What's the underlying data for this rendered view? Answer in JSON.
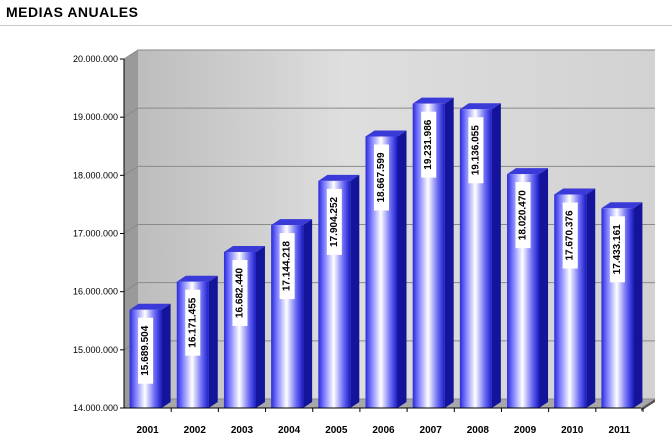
{
  "title": "MEDIAS ANUALES",
  "colors": {
    "bar_light": "#ffffff",
    "bar_mid": "#7b7bff",
    "bar_dark": "#1b1bc8",
    "bar_side": "#14149a",
    "bar_top": "#3a3ad8",
    "wall": "#cfcfcf",
    "floor": "#a8a8a8"
  },
  "chart_data": {
    "type": "bar",
    "title": "MEDIAS ANUALES",
    "xlabel": "",
    "ylabel": "",
    "categories": [
      "2001",
      "2002",
      "2003",
      "2004",
      "2005",
      "2006",
      "2007",
      "2008",
      "2009",
      "2010",
      "2011"
    ],
    "values": [
      15689504,
      16171455,
      16682440,
      17144218,
      17904252,
      18667599,
      19231986,
      19136055,
      18020470,
      17670376,
      17433161
    ],
    "data_labels": [
      "15.689.504",
      "16.171.455",
      "16.682.440",
      "17.144.218",
      "17.904.252",
      "18.667.599",
      "19.231.986",
      "19.136.055",
      "18.020.470",
      "17.670.376",
      "17.433.161"
    ],
    "ylim": [
      14000000,
      20000000
    ],
    "yticks": [
      14000000,
      15000000,
      16000000,
      17000000,
      18000000,
      19000000,
      20000000
    ],
    "ytick_labels": [
      "14.000.000",
      "15.000.000",
      "16.000.000",
      "17.000.000",
      "18.000.000",
      "19.000.000",
      "20.000.000"
    ],
    "grid": true,
    "style": "3d-bar"
  }
}
